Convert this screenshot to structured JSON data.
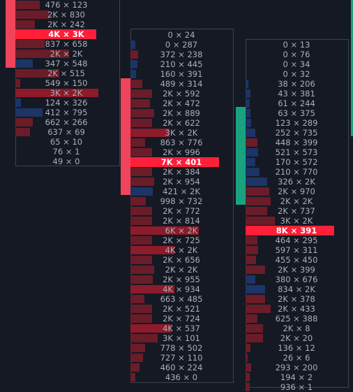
{
  "colors": {
    "background": "#141923",
    "box_border": "#3e434c",
    "bar": "#6b1c29",
    "bar_strong": "#8e1b2b",
    "bar_blue": "#1d3466",
    "poc": "#ff1f38",
    "value_area_red": "#f0445c",
    "value_area_green": "#19a27e",
    "text": "#aab0ba"
  },
  "columns": [
    {
      "name": "cluster-1",
      "rows": [
        {
          "label": "476 × 123",
          "bar": 0.25,
          "color": "dark"
        },
        {
          "label": "2K × 830",
          "bar": 0.35,
          "color": "dark"
        },
        {
          "label": "2K × 242",
          "bar": 0.2,
          "color": "dark"
        },
        {
          "label": "4K × 3K",
          "bar": 0.8,
          "color": "poc"
        },
        {
          "label": "837 × 658",
          "bar": 0.3,
          "color": "dark"
        },
        {
          "label": "2K × 2K",
          "bar": 0.55,
          "color": "dark"
        },
        {
          "label": "347 × 548",
          "bar": 0.18,
          "color": "blue"
        },
        {
          "label": "2K × 515",
          "bar": 0.45,
          "color": "dark"
        },
        {
          "label": "549 × 150",
          "bar": 0.05,
          "color": "dark"
        },
        {
          "label": "3K × 2K",
          "bar": 0.85,
          "color": "strong"
        },
        {
          "label": "124 × 326",
          "bar": 0.06,
          "color": "blue"
        },
        {
          "label": "412 × 795",
          "bar": 0.28,
          "color": "blue"
        },
        {
          "label": "662 × 266",
          "bar": 0.18,
          "color": "dark"
        },
        {
          "label": "637 × 69",
          "bar": 0.15,
          "color": "dark"
        },
        {
          "label": "65 × 10",
          "bar": 0,
          "color": "dark"
        },
        {
          "label": "76 × 1",
          "bar": 0,
          "color": "dark"
        },
        {
          "label": "49 × 0",
          "bar": 0,
          "color": "dark"
        }
      ]
    },
    {
      "name": "cluster-2",
      "rows": [
        {
          "label": "0 × 24",
          "bar": 0,
          "color": "dark"
        },
        {
          "label": "0 × 287",
          "bar": 0.05,
          "color": "blue"
        },
        {
          "label": "372 × 238",
          "bar": 0.08,
          "color": "dark"
        },
        {
          "label": "210 × 445",
          "bar": 0.07,
          "color": "blue"
        },
        {
          "label": "160 × 391",
          "bar": 0.06,
          "color": "blue"
        },
        {
          "label": "489 × 314",
          "bar": 0.12,
          "color": "dark"
        },
        {
          "label": "2K × 592",
          "bar": 0.22,
          "color": "dark"
        },
        {
          "label": "2K × 472",
          "bar": 0.2,
          "color": "dark"
        },
        {
          "label": "2K × 889",
          "bar": 0.24,
          "color": "dark"
        },
        {
          "label": "2K × 622",
          "bar": 0.22,
          "color": "dark"
        },
        {
          "label": "3K × 2K",
          "bar": 0.4,
          "color": "strong"
        },
        {
          "label": "863 × 776",
          "bar": 0.15,
          "color": "dark"
        },
        {
          "label": "2K × 996",
          "bar": 0.22,
          "color": "dark"
        },
        {
          "label": "7K × 401",
          "bar": 0.88,
          "color": "poc"
        },
        {
          "label": "2K × 384",
          "bar": 0.22,
          "color": "dark"
        },
        {
          "label": "2K × 954",
          "bar": 0.24,
          "color": "dark"
        },
        {
          "label": "421 × 2K",
          "bar": 0.23,
          "color": "blue"
        },
        {
          "label": "998 × 732",
          "bar": 0.16,
          "color": "dark"
        },
        {
          "label": "2K × 772",
          "bar": 0.22,
          "color": "dark"
        },
        {
          "label": "2K × 814",
          "bar": 0.22,
          "color": "dark"
        },
        {
          "label": "6K × 2K",
          "bar": 0.7,
          "color": "strong"
        },
        {
          "label": "2K × 725",
          "bar": 0.22,
          "color": "dark"
        },
        {
          "label": "4K × 2K",
          "bar": 0.45,
          "color": "strong"
        },
        {
          "label": "2K × 656",
          "bar": 0.22,
          "color": "dark"
        },
        {
          "label": "2K × 2K",
          "bar": 0.24,
          "color": "dark"
        },
        {
          "label": "2K × 955",
          "bar": 0.23,
          "color": "dark"
        },
        {
          "label": "4K × 934",
          "bar": 0.45,
          "color": "strong"
        },
        {
          "label": "663 × 485",
          "bar": 0.14,
          "color": "dark"
        },
        {
          "label": "2K × 521",
          "bar": 0.22,
          "color": "dark"
        },
        {
          "label": "2K × 724",
          "bar": 0.22,
          "color": "dark"
        },
        {
          "label": "4K × 537",
          "bar": 0.42,
          "color": "strong"
        },
        {
          "label": "3K × 101",
          "bar": 0.28,
          "color": "dark"
        },
        {
          "label": "778 × 502",
          "bar": 0.15,
          "color": "dark"
        },
        {
          "label": "727 × 110",
          "bar": 0.13,
          "color": "dark"
        },
        {
          "label": "460 × 224",
          "bar": 0.09,
          "color": "dark"
        },
        {
          "label": "436 × 0",
          "bar": 0.05,
          "color": "dark"
        }
      ]
    },
    {
      "name": "cluster-3",
      "rows": [
        {
          "label": "0 × 13",
          "bar": 0,
          "color": "dark"
        },
        {
          "label": "0 × 76",
          "bar": 0,
          "color": "dark"
        },
        {
          "label": "0 × 34",
          "bar": 0,
          "color": "dark"
        },
        {
          "label": "0 × 32",
          "bar": 0,
          "color": "dark"
        },
        {
          "label": "38 × 206",
          "bar": 0.03,
          "color": "blue"
        },
        {
          "label": "43 × 381",
          "bar": 0.05,
          "color": "blue"
        },
        {
          "label": "61 × 244",
          "bar": 0.04,
          "color": "blue"
        },
        {
          "label": "63 × 375",
          "bar": 0.05,
          "color": "blue"
        },
        {
          "label": "123 × 289",
          "bar": 0.06,
          "color": "blue"
        },
        {
          "label": "252 × 735",
          "bar": 0.1,
          "color": "blue"
        },
        {
          "label": "448 × 399",
          "bar": 0.12,
          "color": "dark"
        },
        {
          "label": "521 × 573",
          "bar": 0.13,
          "color": "blue"
        },
        {
          "label": "170 × 572",
          "bar": 0.1,
          "color": "blue"
        },
        {
          "label": "210 × 770",
          "bar": 0.14,
          "color": "blue"
        },
        {
          "label": "326 × 2K",
          "bar": 0.22,
          "color": "blue"
        },
        {
          "label": "2K × 970",
          "bar": 0.24,
          "color": "dark"
        },
        {
          "label": "2K × 2K",
          "bar": 0.26,
          "color": "dark"
        },
        {
          "label": "2K × 737",
          "bar": 0.22,
          "color": "dark"
        },
        {
          "label": "3K × 2K",
          "bar": 0.3,
          "color": "dark"
        },
        {
          "label": "8K × 391",
          "bar": 0.88,
          "color": "poc"
        },
        {
          "label": "464 × 295",
          "bar": 0.12,
          "color": "dark"
        },
        {
          "label": "597 × 311",
          "bar": 0.13,
          "color": "dark"
        },
        {
          "label": "455 × 450",
          "bar": 0.11,
          "color": "dark"
        },
        {
          "label": "2K × 399",
          "bar": 0.2,
          "color": "dark"
        },
        {
          "label": "380 × 676",
          "bar": 0.1,
          "color": "blue"
        },
        {
          "label": "834 × 2K",
          "bar": 0.2,
          "color": "blue"
        },
        {
          "label": "2K × 378",
          "bar": 0.2,
          "color": "dark"
        },
        {
          "label": "2K × 433",
          "bar": 0.26,
          "color": "dark"
        },
        {
          "label": "625 × 388",
          "bar": 0.12,
          "color": "dark"
        },
        {
          "label": "2K × 8",
          "bar": 0.18,
          "color": "dark"
        },
        {
          "label": "2K × 20",
          "bar": 0.18,
          "color": "dark"
        },
        {
          "label": "136 × 12",
          "bar": 0.05,
          "color": "dark"
        },
        {
          "label": "26 × 6",
          "bar": 0.02,
          "color": "dark"
        },
        {
          "label": "293 × 200",
          "bar": 0.06,
          "color": "dark"
        },
        {
          "label": "194 × 2",
          "bar": 0.04,
          "color": "dark"
        },
        {
          "label": "936 × 1",
          "bar": 0.04,
          "color": "dark"
        }
      ]
    }
  ]
}
